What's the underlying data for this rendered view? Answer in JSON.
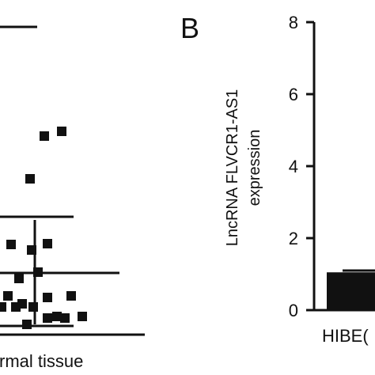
{
  "panels": [
    {
      "id": "A",
      "type": "scatter",
      "category_label": "rmal tissue",
      "points_in_view": [
        {
          "col": 1,
          "row": 1
        },
        {
          "col": 2,
          "row": 1
        },
        {
          "col": 1,
          "row": 3
        },
        {
          "col": 0,
          "row": 5
        },
        {
          "col": 1,
          "row": 5
        },
        {
          "col": 0,
          "row": 7
        },
        {
          "col": 1,
          "row": 7
        },
        {
          "col": 0,
          "row": 9
        },
        {
          "col": 1,
          "row": 9
        },
        {
          "col": 2,
          "row": 9
        },
        {
          "col": 0,
          "row": 10
        },
        {
          "col": 1,
          "row": 10
        },
        {
          "col": 2,
          "row": 10
        },
        {
          "col": 3,
          "row": 10
        },
        {
          "col": 4,
          "row": 10
        },
        {
          "col": 0,
          "row": 11
        },
        {
          "col": 1,
          "row": 11
        },
        {
          "col": 2,
          "row": 11
        },
        {
          "col": 3,
          "row": 11
        },
        {
          "col": 4,
          "row": 11
        }
      ]
    },
    {
      "id": "B",
      "type": "bar",
      "label": "B",
      "ylabel_line1": "LncRNA FLVCR1-AS1",
      "ylabel_line2": "expression",
      "categories": [
        "HIBEC"
      ],
      "category_labels_visible": [
        "HIBE("
      ],
      "values": [
        1.05
      ],
      "error": [
        0.05
      ],
      "ylim": [
        0,
        8
      ],
      "yticks": [
        0,
        2,
        4,
        6,
        8
      ],
      "bar_color": "#111111"
    }
  ],
  "chart_data": {
    "type": "bar",
    "categories": [
      "HIBEC"
    ],
    "values": [
      1.05
    ],
    "title": "",
    "xlabel": "",
    "ylabel": "LncRNA FLVCR1-AS1 expression",
    "ylim": [
      0,
      8
    ]
  }
}
